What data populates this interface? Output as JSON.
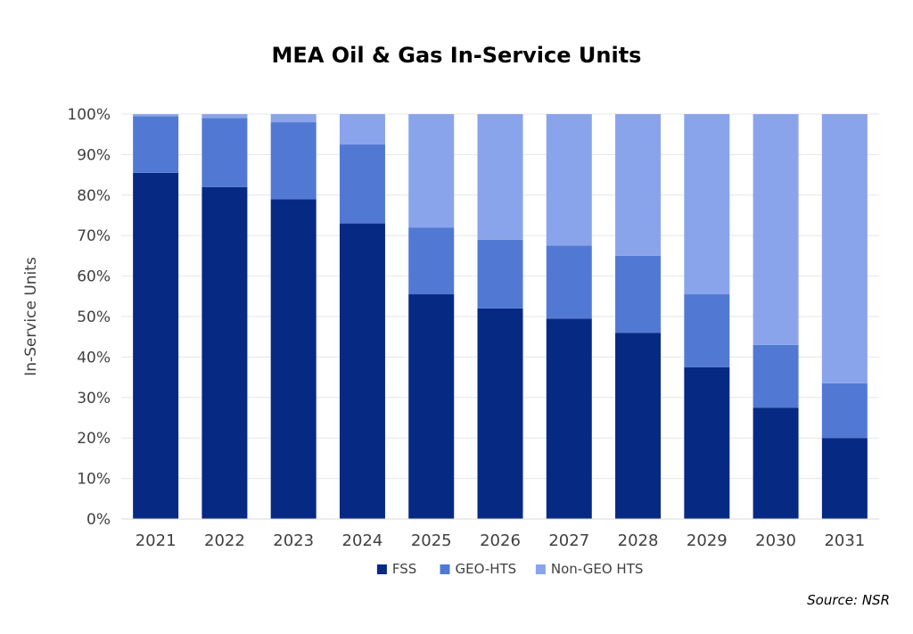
{
  "chart_data": {
    "type": "bar",
    "stacked": true,
    "title": "MEA Oil & Gas In-Service Units",
    "xlabel": "",
    "ylabel": "In-Service Units",
    "ylim": [
      0,
      100
    ],
    "y_unit": "%",
    "y_ticks": [
      "0%",
      "10%",
      "20%",
      "30%",
      "40%",
      "50%",
      "60%",
      "70%",
      "80%",
      "90%",
      "100%"
    ],
    "categories": [
      "2021",
      "2022",
      "2023",
      "2024",
      "2025",
      "2026",
      "2027",
      "2028",
      "2029",
      "2030",
      "2031"
    ],
    "series": [
      {
        "name": "FSS",
        "color": "#062A84",
        "values": [
          85.5,
          82,
          79,
          73,
          55.5,
          52,
          49.5,
          46,
          37.5,
          27.5,
          20
        ]
      },
      {
        "name": "GEO-HTS",
        "color": "#5179D4",
        "values": [
          14,
          17,
          19,
          19.5,
          16.5,
          17,
          18,
          19,
          18,
          15.5,
          13.5
        ]
      },
      {
        "name": "Non-GEO HTS",
        "color": "#8AA4EB",
        "values": [
          0.5,
          1,
          2,
          7.5,
          28,
          31,
          32.5,
          35,
          44.5,
          57,
          66.5
        ]
      }
    ],
    "grid": true,
    "legend_position": "bottom"
  },
  "source": "Source: NSR"
}
